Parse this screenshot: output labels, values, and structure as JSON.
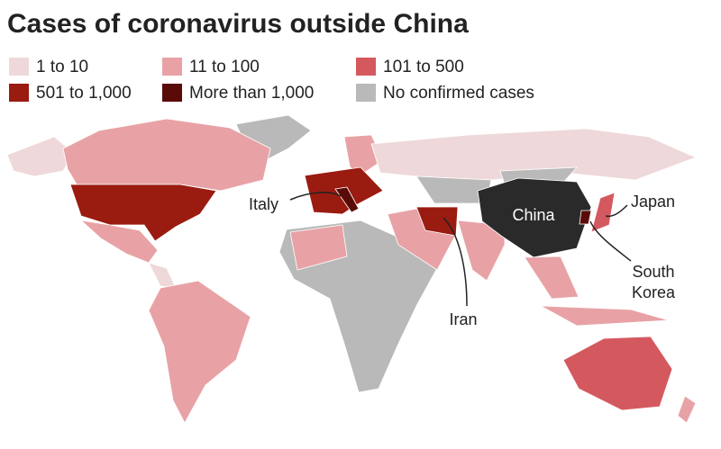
{
  "title": "Cases of coronavirus outside China",
  "legend": [
    {
      "label": "1 to 10",
      "color": "#efd8d9"
    },
    {
      "label": "11 to 100",
      "color": "#e8a2a5"
    },
    {
      "label": "101 to 500",
      "color": "#d4595f"
    },
    {
      "label": "501 to 1,000",
      "color": "#9a1b10"
    },
    {
      "label": "More than 1,000",
      "color": "#5a0b08"
    },
    {
      "label": "No confirmed cases",
      "color": "#b9b9b9"
    }
  ],
  "china_color": "#2a2a2a",
  "labels": {
    "italy": "Italy",
    "china": "China",
    "japan": "Japan",
    "south_korea": [
      "South",
      "Korea"
    ],
    "iran": "Iran"
  }
}
